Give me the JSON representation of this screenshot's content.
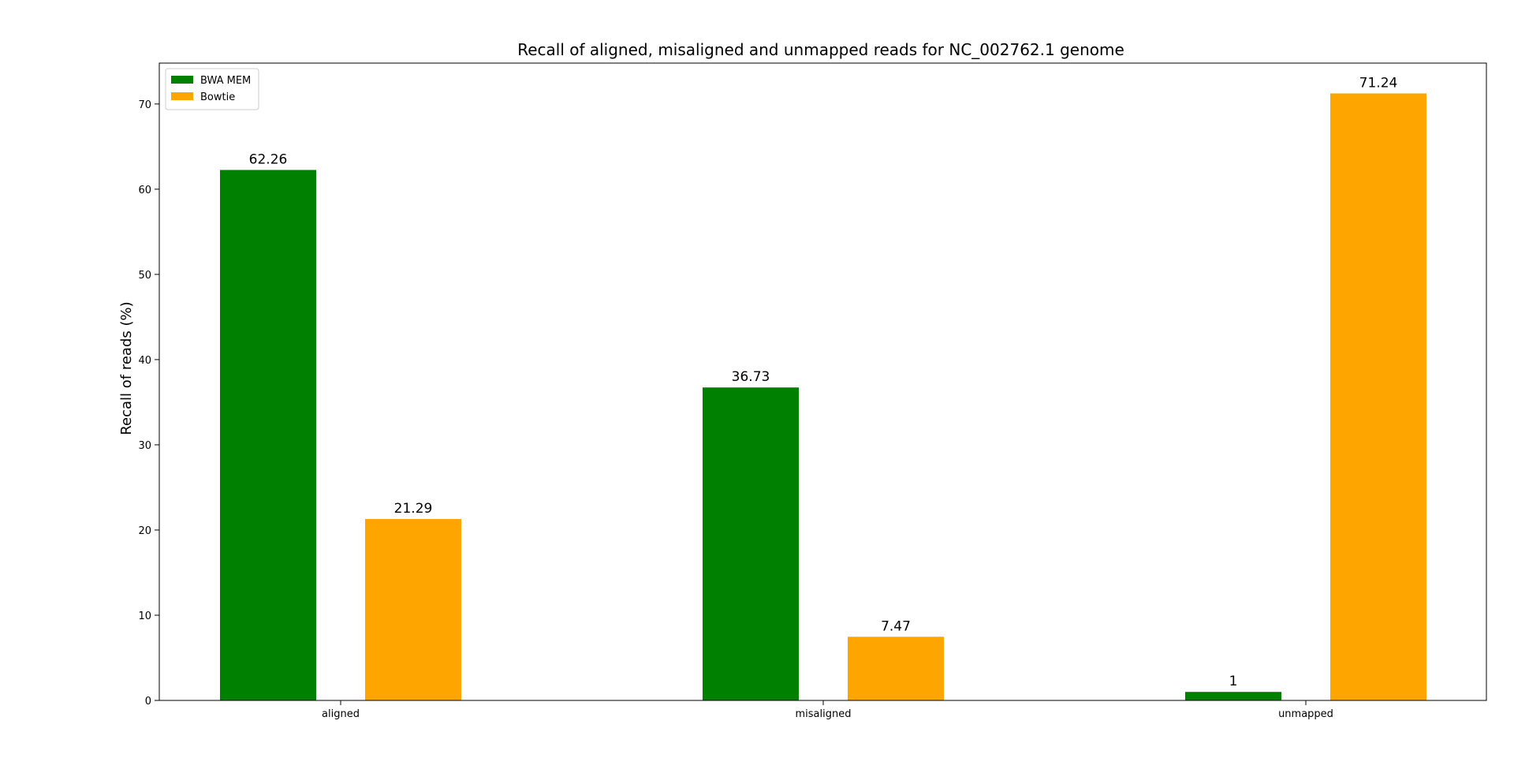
{
  "chart_data": {
    "type": "bar",
    "title": "Recall of aligned, misaligned and unmapped reads for NC_002762.1 genome",
    "xlabel": "",
    "ylabel": "Recall of reads (%)",
    "categories": [
      "aligned",
      "misaligned",
      "unmapped"
    ],
    "series": [
      {
        "name": "BWA MEM",
        "color": "#008000",
        "values": [
          62.26,
          36.73,
          1
        ]
      },
      {
        "name": "Bowtie",
        "color": "#FFA500",
        "values": [
          21.29,
          7.47,
          71.24
        ]
      }
    ],
    "value_labels": [
      [
        "62.26",
        "36.73",
        "1"
      ],
      [
        "21.29",
        "7.47",
        "71.24"
      ]
    ],
    "ylim": [
      0,
      74.8
    ],
    "yticks": [
      0,
      10,
      20,
      30,
      40,
      50,
      60,
      70
    ],
    "grid": false,
    "legend_position": "top-left"
  }
}
